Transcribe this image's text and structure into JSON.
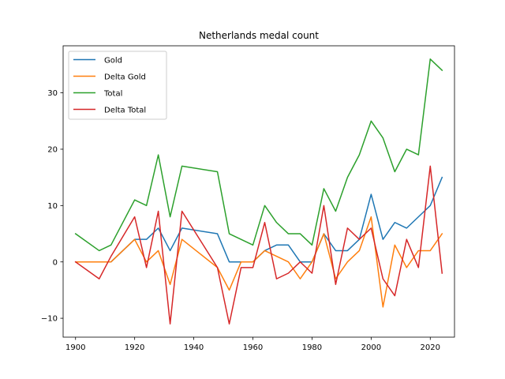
{
  "chart_data": {
    "type": "line",
    "title": "Netherlands medal count",
    "xlabel": "",
    "ylabel": "",
    "xlim": [
      1895.8,
      2028.2
    ],
    "ylim": [
      -13.35,
      38.35
    ],
    "xticks": [
      1900,
      1920,
      1940,
      1960,
      1980,
      2000,
      2020
    ],
    "yticks": [
      -10,
      0,
      10,
      20,
      30
    ],
    "grid": false,
    "legend_position": "upper left",
    "x": [
      1900,
      1908,
      1912,
      1920,
      1924,
      1928,
      1932,
      1936,
      1948,
      1952,
      1956,
      1960,
      1964,
      1968,
      1972,
      1976,
      1980,
      1984,
      1988,
      1992,
      1996,
      2000,
      2004,
      2008,
      2012,
      2016,
      2020,
      2024
    ],
    "series": [
      {
        "name": "Gold",
        "color": "#1f77b4",
        "values": [
          0,
          0,
          0,
          4,
          4,
          6,
          2,
          6,
          5,
          0,
          0,
          0,
          2,
          3,
          3,
          0,
          0,
          5,
          2,
          2,
          4,
          12,
          4,
          7,
          6,
          8,
          10,
          15
        ]
      },
      {
        "name": "Delta Gold",
        "color": "#ff7f0e",
        "values": [
          0,
          0,
          0,
          4,
          0,
          2,
          -4,
          4,
          -1,
          -5,
          0,
          0,
          2,
          1,
          0,
          -3,
          0,
          5,
          -3,
          0,
          2,
          8,
          -8,
          3,
          -1,
          2,
          2,
          5
        ]
      },
      {
        "name": "Total",
        "color": "#2ca02c",
        "values": [
          5,
          2,
          3,
          11,
          10,
          19,
          8,
          17,
          16,
          5,
          4,
          3,
          10,
          7,
          5,
          5,
          3,
          13,
          9,
          15,
          19,
          25,
          22,
          16,
          20,
          19,
          36,
          34
        ]
      },
      {
        "name": "Delta Total",
        "color": "#d62728",
        "values": [
          0,
          -3,
          1,
          8,
          -1,
          9,
          -11,
          9,
          -1,
          -11,
          -1,
          -1,
          7,
          -3,
          -2,
          0,
          -2,
          10,
          -4,
          6,
          4,
          6,
          -3,
          -6,
          4,
          -1,
          17,
          -2
        ]
      }
    ]
  }
}
